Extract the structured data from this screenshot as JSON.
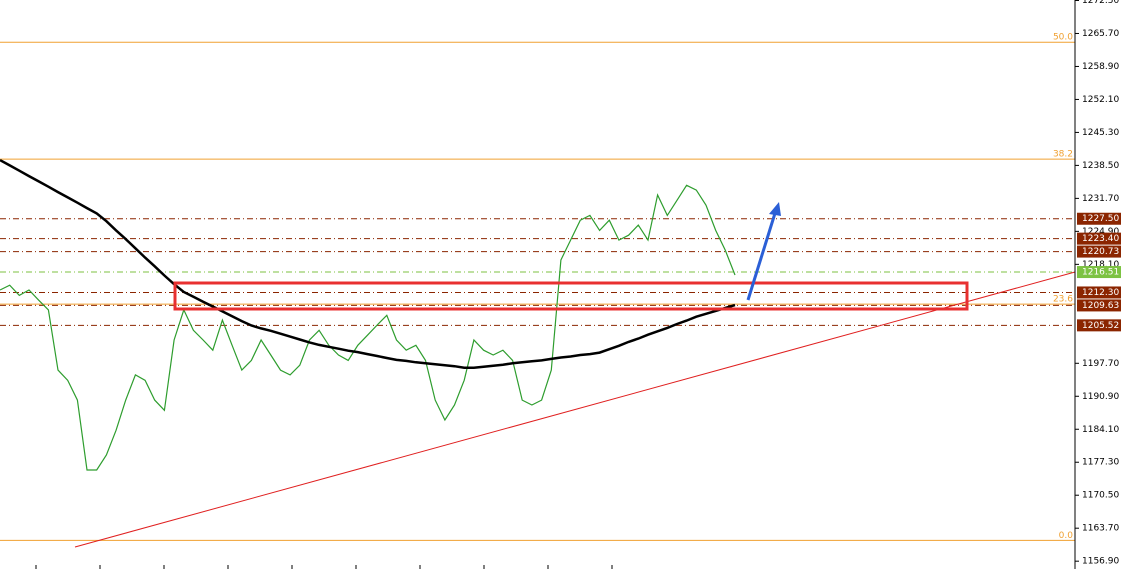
{
  "chart_data": {
    "type": "line",
    "categories": [
      null,
      null,
      null,
      null,
      null,
      null,
      null,
      null,
      null,
      null,
      null,
      null,
      null,
      null,
      null,
      null,
      null,
      null,
      null,
      null,
      null,
      null,
      null,
      null,
      null,
      null,
      null,
      null,
      null,
      null,
      null,
      null,
      null,
      null,
      null,
      null,
      null,
      null,
      null,
      null,
      null,
      null,
      null,
      null,
      null,
      null,
      null,
      null,
      null,
      null,
      null,
      null,
      null,
      null,
      null,
      null,
      null,
      null,
      null,
      null,
      null,
      null,
      null,
      null,
      null,
      null,
      null,
      null,
      null,
      null,
      null,
      null,
      null,
      null,
      null,
      null,
      null
    ],
    "series": [
      {
        "color": "#2e9d2e",
        "values": [
          1212.8,
          1213.8,
          1211.7,
          1212.8,
          1210.7,
          1208.7,
          1196.3,
          1194.2,
          1190.1,
          1175.7,
          1175.7,
          1178.8,
          1183.9,
          1190.1,
          1195.3,
          1194.2,
          1190.1,
          1188.0,
          1202.5,
          1208.7,
          1204.5,
          1202.5,
          1200.4,
          1206.6,
          1201.4,
          1196.3,
          1198.3,
          1202.5,
          1199.4,
          1196.3,
          1195.3,
          1197.3,
          1202.5,
          1204.5,
          1201.4,
          1199.4,
          1198.3,
          1201.4,
          1203.5,
          1205.6,
          1207.6,
          1202.5,
          1200.4,
          1201.4,
          1198.3,
          1190.1,
          1186.0,
          1189.1,
          1194.2,
          1202.5,
          1200.4,
          1199.4,
          1200.4,
          1198.3,
          1190.1,
          1189.1,
          1190.1,
          1196.3,
          1219.0,
          1223.1,
          1227.2,
          1228.2,
          1225.1,
          1227.2,
          1223.1,
          1224.1,
          1226.2,
          1223.1,
          1232.4,
          1228.2,
          1231.3,
          1234.4,
          1233.4,
          1230.3,
          1225.1,
          1221.0,
          1215.9
        ]
      },
      {
        "color": "#000000",
        "values": [
          1239.6,
          1238.5,
          1237.4,
          1236.3,
          1235.2,
          1234.1,
          1233.0,
          1231.9,
          1230.8,
          1229.7,
          1228.6,
          1227.0,
          1225.1,
          1223.3,
          1221.4,
          1219.5,
          1217.7,
          1215.8,
          1214.0,
          1212.4,
          1211.4,
          1210.4,
          1209.4,
          1208.4,
          1207.4,
          1206.4,
          1205.5,
          1204.9,
          1204.4,
          1203.8,
          1203.2,
          1202.6,
          1202.0,
          1201.5,
          1201.1,
          1200.7,
          1200.3,
          1200.0,
          1199.6,
          1199.2,
          1198.8,
          1198.4,
          1198.2,
          1197.9,
          1197.7,
          1197.5,
          1197.3,
          1197.1,
          1196.8,
          1196.8,
          1197.0,
          1197.2,
          1197.4,
          1197.7,
          1197.9,
          1198.1,
          1198.3,
          1198.6,
          1198.9,
          1199.1,
          1199.4,
          1199.6,
          1199.9,
          1200.6,
          1201.3,
          1202.1,
          1202.8,
          1203.6,
          1204.3,
          1205.0,
          1205.8,
          1206.5,
          1207.3,
          1207.9,
          1208.5,
          1209.1,
          1209.7
        ]
      }
    ],
    "ylim": [
      1155.7,
      1272.6
    ],
    "yticks": [
      {
        "value": 1156.9,
        "label": "1156.90"
      },
      {
        "value": 1163.7,
        "label": "1163.70"
      },
      {
        "value": 1170.5,
        "label": "1170.50"
      },
      {
        "value": 1177.3,
        "label": "1177.30"
      },
      {
        "value": 1184.1,
        "label": "1184.10"
      },
      {
        "value": 1190.9,
        "label": "1190.90"
      },
      {
        "value": 1197.7,
        "label": "1197.70"
      },
      {
        "value": 1218.1,
        "label": "1218.10"
      },
      {
        "value": 1224.9,
        "label": "1224.90"
      },
      {
        "value": 1231.7,
        "label": "1231.70"
      },
      {
        "value": 1238.5,
        "label": "1238.50"
      },
      {
        "value": 1245.3,
        "label": "1245.30"
      },
      {
        "value": 1252.1,
        "label": "1252.10"
      },
      {
        "value": 1258.9,
        "label": "1258.90"
      },
      {
        "value": 1265.7,
        "label": "1265.70"
      },
      {
        "value": 1272.5,
        "label": "1272.50"
      }
    ],
    "levels": [
      {
        "value": 1227.5,
        "label": "1227.50",
        "color": "#8b2500"
      },
      {
        "value": 1223.4,
        "label": "1223.40",
        "color": "#8b2500"
      },
      {
        "value": 1220.73,
        "label": "1220.73",
        "color": "#8b2500"
      },
      {
        "value": 1216.51,
        "label": "1216.51",
        "color": "#7cc242"
      },
      {
        "value": 1212.3,
        "label": "1212.30",
        "color": "#8b2500"
      },
      {
        "value": 1209.63,
        "label": "1209.63",
        "color": "#8b2500"
      },
      {
        "value": 1205.52,
        "label": "1205.52",
        "color": "#8b2500"
      }
    ],
    "fib_levels": [
      {
        "value": 1263.9,
        "label": "50.0"
      },
      {
        "value": 1239.8,
        "label": "38.2"
      },
      {
        "value": 1209.9,
        "label": "23.6"
      },
      {
        "value": 1161.2,
        "label": "0.0"
      }
    ],
    "fib_color": "#f0a030"
  }
}
